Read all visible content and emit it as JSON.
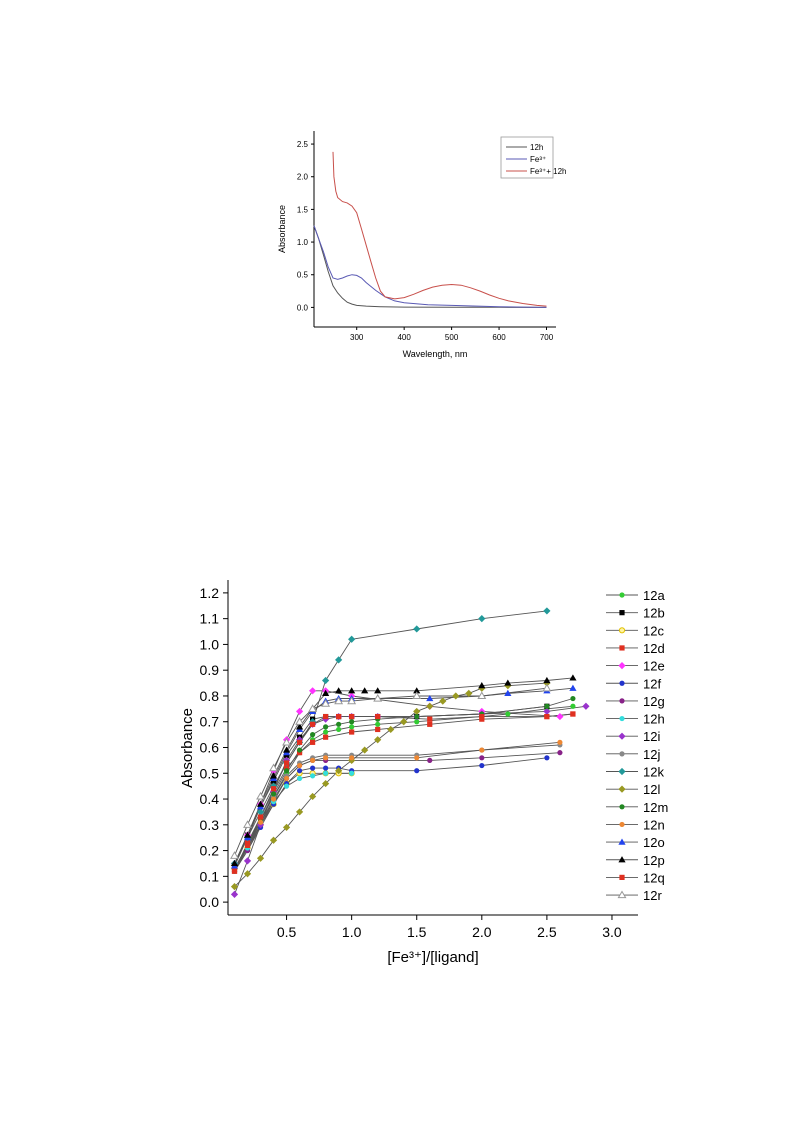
{
  "chart_data": [
    {
      "type": "line",
      "xlabel": "Wavelength, nm",
      "ylabel": "Absorbance",
      "xlim": [
        210,
        720
      ],
      "ylim": [
        -0.3,
        2.7
      ],
      "xticks": [
        300,
        400,
        500,
        600,
        700
      ],
      "yticks": [
        0.0,
        0.5,
        1.0,
        1.5,
        2.0,
        2.5
      ],
      "xtick_labels": [
        "300",
        "400",
        "500",
        "600",
        "700"
      ],
      "ytick_labels": [
        "0.0",
        "0.5",
        "1.0",
        "1.5",
        "2.0",
        "2.5"
      ],
      "legend_position": "top-right",
      "legend": [
        "12h",
        "Fe³⁺",
        "Fe³⁺+ 12h"
      ],
      "series": [
        {
          "name": "12h",
          "color": "#555555",
          "x": [
            210,
            220,
            230,
            240,
            250,
            260,
            270,
            280,
            290,
            300,
            320,
            350,
            400,
            500,
            600,
            700
          ],
          "y": [
            1.25,
            1.05,
            0.8,
            0.55,
            0.33,
            0.22,
            0.14,
            0.08,
            0.05,
            0.03,
            0.02,
            0.01,
            0.005,
            0.002,
            0.001,
            0.0
          ]
        },
        {
          "name": "Fe³⁺",
          "color": "#5a5ab4",
          "x": [
            210,
            220,
            230,
            240,
            250,
            260,
            270,
            280,
            290,
            300,
            310,
            320,
            340,
            360,
            380,
            400,
            450,
            500,
            600,
            700
          ],
          "y": [
            1.25,
            1.05,
            0.85,
            0.62,
            0.45,
            0.43,
            0.45,
            0.48,
            0.5,
            0.49,
            0.45,
            0.38,
            0.26,
            0.16,
            0.1,
            0.07,
            0.04,
            0.03,
            0.01,
            0.0
          ]
        },
        {
          "name": "Fe³⁺+ 12h",
          "color": "#c8504b",
          "x": [
            250,
            252,
            256,
            260,
            270,
            280,
            290,
            300,
            310,
            320,
            330,
            340,
            350,
            360,
            380,
            400,
            420,
            440,
            460,
            480,
            500,
            520,
            540,
            560,
            580,
            600,
            620,
            650,
            680,
            700
          ],
          "y": [
            2.38,
            2.0,
            1.78,
            1.68,
            1.62,
            1.6,
            1.55,
            1.45,
            1.2,
            0.95,
            0.7,
            0.45,
            0.25,
            0.16,
            0.13,
            0.15,
            0.2,
            0.26,
            0.31,
            0.34,
            0.35,
            0.34,
            0.3,
            0.25,
            0.19,
            0.14,
            0.1,
            0.06,
            0.03,
            0.02
          ]
        }
      ]
    },
    {
      "type": "line",
      "xlabel": "[Fe³⁺]/[ligand]",
      "ylabel": "Absorbance",
      "xlim": [
        0.05,
        3.2
      ],
      "ylim": [
        -0.05,
        1.25
      ],
      "xticks": [
        0.5,
        1.0,
        1.5,
        2.0,
        2.5,
        3.0
      ],
      "yticks": [
        0.0,
        0.1,
        0.2,
        0.3,
        0.4,
        0.5,
        0.6,
        0.7,
        0.8,
        0.9,
        1.0,
        1.1,
        1.2
      ],
      "xtick_labels": [
        "0.5",
        "1.0",
        "1.5",
        "2.0",
        "2.5",
        "3.0"
      ],
      "ytick_labels": [
        "0.0",
        "0.1",
        "0.2",
        "0.3",
        "0.4",
        "0.5",
        "0.6",
        "0.7",
        "0.8",
        "0.9",
        "1.0",
        "1.1",
        "1.2"
      ],
      "legend_position": "right",
      "series": [
        {
          "name": "12a",
          "color": "#33cc33",
          "marker": "circle",
          "x": [
            0.1,
            0.2,
            0.3,
            0.4,
            0.5,
            0.6,
            0.7,
            0.8,
            0.9,
            1.0,
            1.2,
            1.5,
            2.0,
            2.2,
            2.5,
            2.7
          ],
          "y": [
            0.13,
            0.22,
            0.32,
            0.41,
            0.5,
            0.58,
            0.63,
            0.66,
            0.67,
            0.68,
            0.69,
            0.7,
            0.72,
            0.73,
            0.75,
            0.76
          ]
        },
        {
          "name": "12b",
          "color": "#000000",
          "marker": "square",
          "x": [
            0.1,
            0.2,
            0.3,
            0.4,
            0.5,
            0.6,
            0.7,
            0.8,
            0.9,
            1.0,
            1.2,
            1.5,
            2.0,
            2.5
          ],
          "y": [
            0.14,
            0.26,
            0.37,
            0.47,
            0.57,
            0.64,
            0.71,
            0.72,
            0.72,
            0.72,
            0.72,
            0.72,
            0.73,
            0.76
          ]
        },
        {
          "name": "12c",
          "color": "#e0c000",
          "marker": "circle-open",
          "x": [
            0.1,
            0.2,
            0.3,
            0.4,
            0.5,
            0.6,
            0.7,
            0.8,
            0.9,
            1.0
          ],
          "y": [
            0.13,
            0.21,
            0.3,
            0.38,
            0.46,
            0.5,
            0.5,
            0.5,
            0.5,
            0.5
          ]
        },
        {
          "name": "12d",
          "color": "#e03020",
          "marker": "square",
          "x": [
            0.1,
            0.2,
            0.3,
            0.4,
            0.5,
            0.6,
            0.7,
            0.8,
            1.0,
            1.2,
            1.6,
            2.0,
            2.5,
            2.7
          ],
          "y": [
            0.12,
            0.23,
            0.33,
            0.43,
            0.52,
            0.58,
            0.62,
            0.64,
            0.66,
            0.67,
            0.69,
            0.71,
            0.72,
            0.73
          ]
        },
        {
          "name": "12e",
          "color": "#ff33ff",
          "marker": "diamond",
          "x": [
            0.1,
            0.2,
            0.3,
            0.4,
            0.5,
            0.6,
            0.7,
            0.8,
            1.0,
            1.6,
            2.0,
            2.6
          ],
          "y": [
            0.15,
            0.26,
            0.38,
            0.51,
            0.63,
            0.74,
            0.82,
            0.82,
            0.8,
            0.76,
            0.74,
            0.72
          ]
        },
        {
          "name": "12f",
          "color": "#2233cc",
          "marker": "circle",
          "x": [
            0.1,
            0.2,
            0.3,
            0.4,
            0.5,
            0.6,
            0.7,
            0.8,
            0.9,
            1.0,
            1.5,
            2.0,
            2.5
          ],
          "y": [
            0.12,
            0.2,
            0.29,
            0.38,
            0.46,
            0.51,
            0.52,
            0.52,
            0.52,
            0.51,
            0.51,
            0.53,
            0.56
          ]
        },
        {
          "name": "12g",
          "color": "#882288",
          "marker": "circle",
          "x": [
            0.1,
            0.2,
            0.3,
            0.4,
            0.5,
            0.6,
            0.7,
            0.8,
            1.0,
            1.6,
            2.0,
            2.6
          ],
          "y": [
            0.12,
            0.2,
            0.3,
            0.39,
            0.48,
            0.53,
            0.55,
            0.55,
            0.55,
            0.55,
            0.56,
            0.58
          ]
        },
        {
          "name": "12h",
          "color": "#33dddd",
          "marker": "circle",
          "x": [
            0.1,
            0.2,
            0.3,
            0.4,
            0.5,
            0.6,
            0.7,
            0.8,
            1.0
          ],
          "y": [
            0.12,
            0.21,
            0.31,
            0.39,
            0.45,
            0.48,
            0.49,
            0.5,
            0.5
          ]
        },
        {
          "name": "12i",
          "color": "#9933cc",
          "marker": "diamond",
          "x": [
            0.1,
            0.2,
            0.3,
            0.4,
            0.5,
            0.6,
            0.7,
            0.8,
            0.9,
            1.0,
            1.2,
            1.5,
            2.0,
            2.5,
            2.8
          ],
          "y": [
            0.03,
            0.16,
            0.3,
            0.43,
            0.55,
            0.63,
            0.69,
            0.71,
            0.72,
            0.72,
            0.72,
            0.72,
            0.73,
            0.74,
            0.76
          ]
        },
        {
          "name": "12j",
          "color": "#888888",
          "marker": "circle",
          "x": [
            0.1,
            0.2,
            0.3,
            0.4,
            0.5,
            0.6,
            0.7,
            0.8,
            1.0,
            1.5,
            2.0,
            2.6
          ],
          "y": [
            0.13,
            0.22,
            0.32,
            0.41,
            0.49,
            0.54,
            0.56,
            0.57,
            0.57,
            0.57,
            0.59,
            0.61
          ]
        },
        {
          "name": "12k",
          "color": "#229999",
          "marker": "diamond",
          "x": [
            0.1,
            0.2,
            0.3,
            0.4,
            0.5,
            0.6,
            0.7,
            0.8,
            0.9,
            1.0,
            1.5,
            2.0,
            2.5
          ],
          "y": [
            0.15,
            0.25,
            0.35,
            0.45,
            0.54,
            0.62,
            0.7,
            0.86,
            0.94,
            1.02,
            1.06,
            1.1,
            1.13
          ]
        },
        {
          "name": "12l",
          "color": "#999922",
          "marker": "diamond",
          "x": [
            0.1,
            0.2,
            0.3,
            0.4,
            0.5,
            0.6,
            0.7,
            0.8,
            0.9,
            1.0,
            1.1,
            1.2,
            1.3,
            1.4,
            1.5,
            1.6,
            1.7,
            1.8,
            1.9,
            2.0,
            2.2,
            2.5
          ],
          "y": [
            0.06,
            0.11,
            0.17,
            0.24,
            0.29,
            0.35,
            0.41,
            0.46,
            0.51,
            0.55,
            0.59,
            0.63,
            0.67,
            0.7,
            0.74,
            0.76,
            0.78,
            0.8,
            0.81,
            0.83,
            0.84,
            0.85
          ]
        },
        {
          "name": "12m",
          "color": "#228822",
          "marker": "circle",
          "x": [
            0.1,
            0.2,
            0.3,
            0.4,
            0.5,
            0.6,
            0.7,
            0.8,
            0.9,
            1.0,
            1.2,
            1.5,
            2.0,
            2.5,
            2.7
          ],
          "y": [
            0.12,
            0.22,
            0.32,
            0.42,
            0.51,
            0.59,
            0.65,
            0.68,
            0.69,
            0.7,
            0.71,
            0.72,
            0.73,
            0.76,
            0.79
          ]
        },
        {
          "name": "12n",
          "color": "#ee8833",
          "marker": "circle",
          "x": [
            0.1,
            0.2,
            0.3,
            0.4,
            0.5,
            0.6,
            0.7,
            0.8,
            1.0,
            1.5,
            2.0,
            2.6
          ],
          "y": [
            0.13,
            0.22,
            0.31,
            0.4,
            0.48,
            0.53,
            0.55,
            0.56,
            0.56,
            0.56,
            0.59,
            0.62
          ]
        },
        {
          "name": "12o",
          "color": "#2244ee",
          "marker": "triangle",
          "x": [
            0.1,
            0.2,
            0.3,
            0.4,
            0.5,
            0.6,
            0.7,
            0.8,
            0.9,
            1.0,
            1.2,
            1.6,
            2.0,
            2.2,
            2.5,
            2.7
          ],
          "y": [
            0.14,
            0.25,
            0.37,
            0.48,
            0.58,
            0.67,
            0.74,
            0.78,
            0.79,
            0.79,
            0.79,
            0.79,
            0.8,
            0.81,
            0.82,
            0.83
          ]
        },
        {
          "name": "12p",
          "color": "#000000",
          "marker": "triangle",
          "x": [
            0.1,
            0.2,
            0.3,
            0.4,
            0.5,
            0.6,
            0.7,
            0.8,
            0.9,
            1.0,
            1.1,
            1.2,
            1.5,
            2.0,
            2.2,
            2.5,
            2.7
          ],
          "y": [
            0.15,
            0.26,
            0.38,
            0.49,
            0.59,
            0.68,
            0.75,
            0.81,
            0.82,
            0.82,
            0.82,
            0.82,
            0.82,
            0.84,
            0.85,
            0.86,
            0.87
          ]
        },
        {
          "name": "12q",
          "color": "#e03020",
          "marker": "square",
          "x": [
            0.1,
            0.2,
            0.3,
            0.4,
            0.5,
            0.6,
            0.7,
            0.8,
            0.9,
            1.0,
            1.2,
            1.6,
            2.0,
            2.5,
            2.7
          ],
          "y": [
            0.12,
            0.22,
            0.33,
            0.44,
            0.54,
            0.62,
            0.69,
            0.72,
            0.72,
            0.72,
            0.72,
            0.71,
            0.72,
            0.72,
            0.73
          ]
        },
        {
          "name": "12r",
          "color": "#999999",
          "marker": "triangle-open",
          "x": [
            0.1,
            0.2,
            0.3,
            0.4,
            0.5,
            0.6,
            0.7,
            0.8,
            0.9,
            1.0,
            1.2,
            1.5,
            2.0,
            2.5
          ],
          "y": [
            0.18,
            0.3,
            0.41,
            0.52,
            0.62,
            0.7,
            0.75,
            0.77,
            0.78,
            0.78,
            0.79,
            0.8,
            0.8,
            0.83
          ]
        }
      ]
    }
  ]
}
